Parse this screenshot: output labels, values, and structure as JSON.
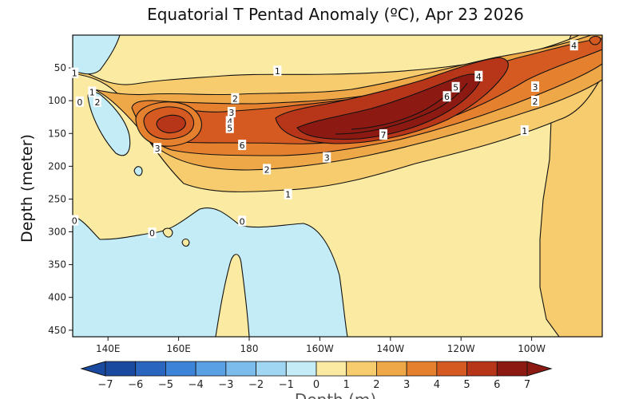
{
  "chart_data": {
    "type": "heatmap",
    "title": "Equatorial T Pentad Anomaly (ºC), Apr 23 2026",
    "ylabel": "Depth (meter)",
    "xlabel": "",
    "y_ticks": [
      "50",
      "100",
      "150",
      "200",
      "250",
      "300",
      "350",
      "400",
      "450"
    ],
    "y_range": [
      0,
      460
    ],
    "y_inverted": true,
    "x_ticks": [
      "140E",
      "160E",
      "180",
      "160W",
      "140W",
      "120W",
      "100W"
    ],
    "x_range_degE": [
      130,
      280
    ],
    "x_tick_degE": [
      140,
      160,
      180,
      200,
      220,
      240,
      260
    ],
    "colorbar": {
      "levels": [
        -7,
        -6,
        -5,
        -4,
        -3,
        -2,
        -1,
        0,
        1,
        2,
        3,
        4,
        5,
        6,
        7
      ],
      "tick_labels": [
        "−7",
        "−6",
        "−5",
        "−4",
        "−3",
        "−2",
        "−1",
        "0",
        "1",
        "2",
        "3",
        "4",
        "5",
        "6",
        "7"
      ],
      "colors_negative": [
        "#1a4aa0",
        "#2a66c0",
        "#3d84d8",
        "#5aa0e4",
        "#7cbcec",
        "#a0d6f2",
        "#c4ecf6"
      ],
      "colors_positive": [
        "#fbeaa2",
        "#f6cc6e",
        "#efa848",
        "#e5802e",
        "#d55a22",
        "#b7361a",
        "#8c1a12"
      ]
    },
    "contour_labels": [
      {
        "text": "1",
        "lon": 130.5,
        "depth": 58
      },
      {
        "text": "1",
        "lon": 135.5,
        "depth": 87
      },
      {
        "text": "2",
        "lon": 137,
        "depth": 102
      },
      {
        "text": "0",
        "lon": 132,
        "depth": 102
      },
      {
        "text": "1",
        "lon": 188,
        "depth": 55
      },
      {
        "text": "2",
        "lon": 176,
        "depth": 97
      },
      {
        "text": "3",
        "lon": 175,
        "depth": 118
      },
      {
        "text": "4",
        "lon": 174.5,
        "depth": 132
      },
      {
        "text": "5",
        "lon": 174.5,
        "depth": 142
      },
      {
        "text": "3",
        "lon": 154,
        "depth": 173
      },
      {
        "text": "6",
        "lon": 178,
        "depth": 168
      },
      {
        "text": "7",
        "lon": 218,
        "depth": 152
      },
      {
        "text": "3",
        "lon": 202,
        "depth": 187
      },
      {
        "text": "2",
        "lon": 185,
        "depth": 205
      },
      {
        "text": "1",
        "lon": 191,
        "depth": 243
      },
      {
        "text": "6",
        "lon": 236,
        "depth": 94
      },
      {
        "text": "5",
        "lon": 238.5,
        "depth": 80
      },
      {
        "text": "4",
        "lon": 245,
        "depth": 63
      },
      {
        "text": "4",
        "lon": 272,
        "depth": 16
      },
      {
        "text": "3",
        "lon": 261,
        "depth": 79
      },
      {
        "text": "2",
        "lon": 261,
        "depth": 101
      },
      {
        "text": "1",
        "lon": 258,
        "depth": 146
      },
      {
        "text": "0",
        "lon": 130.5,
        "depth": 283
      },
      {
        "text": "0",
        "lon": 152.5,
        "depth": 302
      },
      {
        "text": "0",
        "lon": 178,
        "depth": 284
      }
    ],
    "colorbar_caption_partial": "Depth (m)",
    "grid": false
  }
}
